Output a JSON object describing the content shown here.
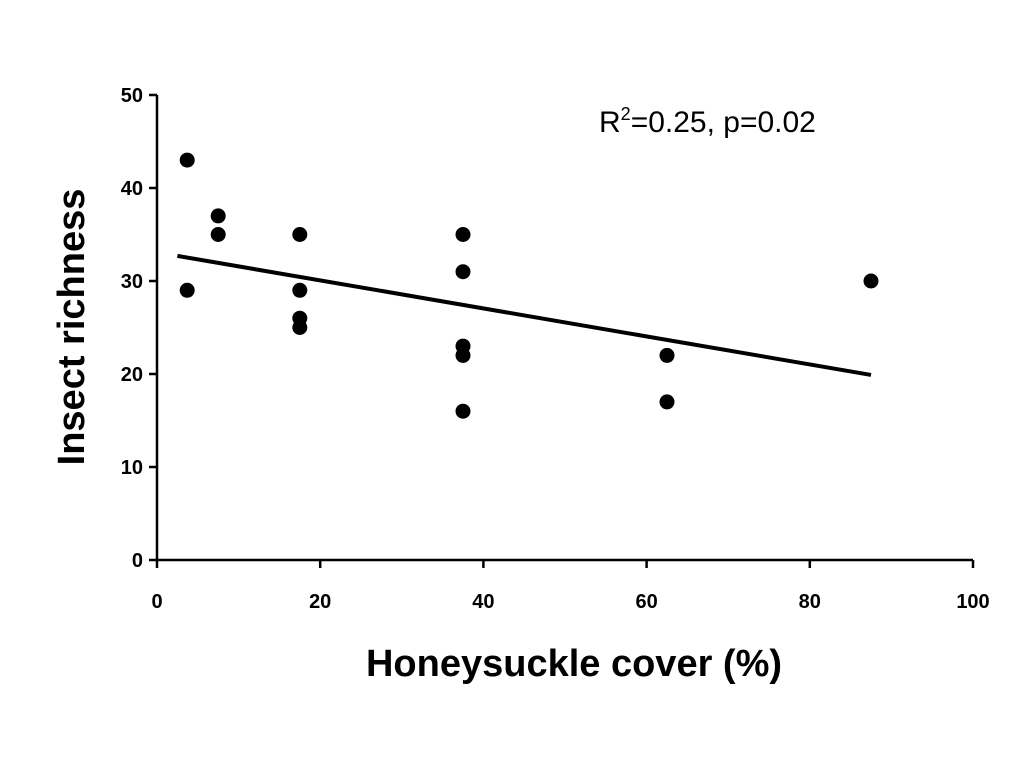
{
  "chart_data": {
    "type": "scatter",
    "title": "",
    "xlabel": "Honeysuckle cover (%)",
    "ylabel": "Insect  richness",
    "xlim": [
      0,
      100
    ],
    "ylim": [
      0,
      50
    ],
    "x_ticks": [
      0,
      20,
      40,
      60,
      80,
      100
    ],
    "y_ticks": [
      0,
      10,
      20,
      30,
      40,
      50
    ],
    "grid": false,
    "legend": "none",
    "annotation": {
      "prefix": "R",
      "superscript": "2",
      "suffix": "=0.25, p=0.02"
    },
    "series": [
      {
        "points": [
          [
            3.7,
            43
          ],
          [
            3.7,
            29
          ],
          [
            7.5,
            37
          ],
          [
            7.5,
            35
          ],
          [
            17.5,
            35
          ],
          [
            17.5,
            29
          ],
          [
            17.5,
            26
          ],
          [
            17.5,
            25
          ],
          [
            37.5,
            35
          ],
          [
            37.5,
            31
          ],
          [
            37.5,
            23
          ],
          [
            37.5,
            22
          ],
          [
            37.5,
            16
          ],
          [
            62.5,
            22
          ],
          [
            62.5,
            17
          ],
          [
            87.5,
            30
          ]
        ]
      }
    ],
    "trendline": {
      "x": [
        2.5,
        87.5
      ],
      "y": [
        32.7,
        19.9
      ]
    },
    "colors": {
      "marker": "#000000",
      "line": "#000000",
      "axis": "#000000"
    }
  }
}
